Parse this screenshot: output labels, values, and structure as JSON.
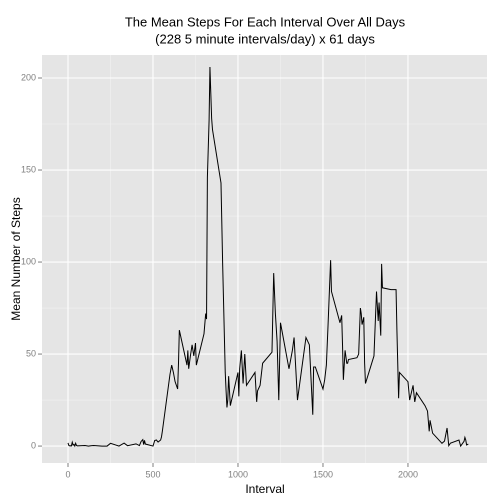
{
  "chart_data": {
    "type": "line",
    "title": "The Mean Steps For Each Interval Over All Days",
    "subtitle": "(228 5 minute intervals/day) x 61 days",
    "x_label": "Interval",
    "y_label": "Mean Number of Steps",
    "xlim": [
      -153,
      2465
    ],
    "ylim": [
      -9.2,
      212.5
    ],
    "xticks": [
      0,
      500,
      1000,
      1500,
      2000
    ],
    "yticks": [
      0,
      50,
      100,
      150,
      200
    ],
    "grid": true,
    "x": [
      0,
      5,
      10,
      15,
      20,
      25,
      30,
      35,
      40,
      45,
      50,
      55,
      100,
      120,
      135,
      150,
      200,
      230,
      250,
      300,
      330,
      350,
      400,
      420,
      430,
      440,
      445,
      450,
      455,
      500,
      510,
      520,
      530,
      545,
      550,
      555,
      600,
      610,
      620,
      630,
      645,
      650,
      655,
      700,
      705,
      710,
      720,
      730,
      740,
      750,
      755,
      800,
      810,
      815,
      820,
      830,
      835,
      840,
      845,
      850,
      900,
      910,
      925,
      930,
      935,
      940,
      945,
      955,
      1000,
      1005,
      1010,
      1020,
      1030,
      1040,
      1050,
      1100,
      1110,
      1115,
      1130,
      1145,
      1200,
      1210,
      1220,
      1230,
      1240,
      1250,
      1300,
      1320,
      1330,
      1340,
      1350,
      1400,
      1420,
      1440,
      1445,
      1455,
      1500,
      1510,
      1520,
      1530,
      1545,
      1550,
      1600,
      1610,
      1615,
      1620,
      1630,
      1640,
      1645,
      1650,
      1700,
      1710,
      1720,
      1725,
      1730,
      1740,
      1745,
      1750,
      1800,
      1815,
      1825,
      1830,
      1840,
      1845,
      1850,
      1900,
      1930,
      1935,
      1945,
      1950,
      2000,
      2010,
      2030,
      2040,
      2050,
      2100,
      2115,
      2125,
      2130,
      2145,
      2200,
      2215,
      2230,
      2240,
      2250,
      2300,
      2310,
      2330,
      2335,
      2340,
      2345,
      2355
    ],
    "series": [
      {
        "name": "Mean Steps",
        "color": "#000000",
        "values": [
          1.7,
          0.3,
          0.1,
          0.2,
          0.1,
          2.1,
          0.5,
          0.9,
          0,
          1.5,
          0.3,
          0.1,
          0.3,
          0,
          0.2,
          0.3,
          0,
          0,
          1.5,
          0,
          1.6,
          0.2,
          1.2,
          0.3,
          2.5,
          3.5,
          0.8,
          3.1,
          1.1,
          0,
          3.0,
          3.3,
          2.2,
          3.3,
          5,
          8,
          39,
          44,
          40,
          35,
          31,
          45,
          63,
          44,
          52,
          42,
          49,
          55,
          49,
          56,
          44,
          61,
          72,
          69,
          146,
          177,
          206,
          192,
          178,
          172,
          143,
          98,
          40,
          30,
          21,
          25,
          38,
          22,
          40,
          27,
          42,
          52,
          34,
          50,
          33,
          40,
          24,
          30,
          33,
          45,
          51,
          94,
          72,
          57,
          25,
          67,
          42,
          52,
          59,
          42,
          25,
          59,
          55,
          17,
          43,
          43,
          31,
          36,
          44,
          66,
          101,
          84,
          67,
          71,
          55,
          36,
          52,
          45,
          45,
          47,
          48,
          50,
          75,
          72,
          66,
          70,
          45,
          34,
          49,
          84,
          68,
          78,
          60,
          99,
          86,
          85,
          85,
          63,
          26,
          40,
          35,
          25,
          33,
          24,
          29,
          22,
          19,
          8,
          14,
          7,
          1.5,
          2.7,
          9.8,
          0.2,
          1.6,
          3.3,
          0,
          2.6,
          4.7,
          3.3,
          0.6,
          1.1
        ]
      }
    ]
  }
}
